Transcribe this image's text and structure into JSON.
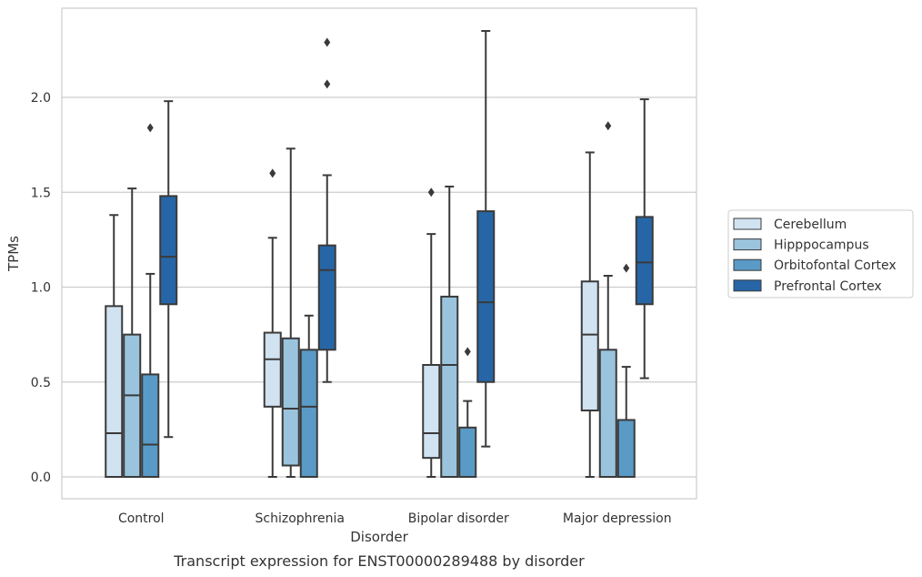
{
  "chart_data": {
    "type": "box",
    "title": "",
    "caption": "Transcript expression for ENST00000289488 by disorder",
    "xlabel": "Disorder",
    "ylabel": "TPMs",
    "ylim": [
      -0.11,
      2.47
    ],
    "yticks": [
      0.0,
      0.5,
      1.0,
      1.5,
      2.0
    ],
    "ytick_labels": [
      "0.0",
      "0.5",
      "1.0",
      "1.5",
      "2.0"
    ],
    "grid": "horizontal",
    "legend_position": "right",
    "categories": [
      "Control",
      "Schizophrenia",
      "Bipolar disorder",
      "Major depression"
    ],
    "series": [
      {
        "name": "Cerebellum",
        "color": "#d1e2f1",
        "boxes": [
          {
            "whislo": 0.0,
            "q1": 0.0,
            "med": 0.23,
            "q3": 0.9,
            "whishi": 1.38,
            "fliers": []
          },
          {
            "whislo": 0.0,
            "q1": 0.37,
            "med": 0.62,
            "q3": 0.76,
            "whishi": 1.26,
            "fliers": [
              1.6
            ]
          },
          {
            "whislo": 0.0,
            "q1": 0.1,
            "med": 0.23,
            "q3": 0.59,
            "whishi": 1.28,
            "fliers": [
              1.5
            ]
          },
          {
            "whislo": 0.0,
            "q1": 0.35,
            "med": 0.75,
            "q3": 1.03,
            "whishi": 1.71,
            "fliers": []
          }
        ]
      },
      {
        "name": "Hipppocampus",
        "color": "#9ac4de",
        "boxes": [
          {
            "whislo": 0.0,
            "q1": 0.0,
            "med": 0.43,
            "q3": 0.75,
            "whishi": 1.52,
            "fliers": []
          },
          {
            "whislo": 0.0,
            "q1": 0.06,
            "med": 0.36,
            "q3": 0.73,
            "whishi": 1.73,
            "fliers": []
          },
          {
            "whislo": 0.0,
            "q1": 0.0,
            "med": 0.59,
            "q3": 0.95,
            "whishi": 1.53,
            "fliers": []
          },
          {
            "whislo": 0.0,
            "q1": 0.0,
            "med": 0.0,
            "q3": 0.67,
            "whishi": 1.06,
            "fliers": [
              1.85
            ]
          }
        ]
      },
      {
        "name": "Orbitofontal Cortex",
        "color": "#5a9ac6",
        "boxes": [
          {
            "whislo": 0.0,
            "q1": 0.0,
            "med": 0.17,
            "q3": 0.54,
            "whishi": 1.07,
            "fliers": [
              1.84
            ]
          },
          {
            "whislo": 0.0,
            "q1": 0.0,
            "med": 0.37,
            "q3": 0.67,
            "whishi": 0.85,
            "fliers": []
          },
          {
            "whislo": 0.0,
            "q1": 0.0,
            "med": 0.0,
            "q3": 0.26,
            "whishi": 0.4,
            "fliers": [
              0.66
            ]
          },
          {
            "whislo": 0.0,
            "q1": 0.0,
            "med": 0.0,
            "q3": 0.3,
            "whishi": 0.58,
            "fliers": [
              1.1
            ]
          }
        ]
      },
      {
        "name": "Prefrontal Cortex",
        "color": "#2666a7",
        "boxes": [
          {
            "whislo": 0.21,
            "q1": 0.91,
            "med": 1.16,
            "q3": 1.48,
            "whishi": 1.98,
            "fliers": []
          },
          {
            "whislo": 0.5,
            "q1": 0.67,
            "med": 1.09,
            "q3": 1.22,
            "whishi": 1.59,
            "fliers": [
              2.07,
              2.29
            ]
          },
          {
            "whislo": 0.16,
            "q1": 0.5,
            "med": 0.92,
            "q3": 1.4,
            "whishi": 2.35,
            "fliers": []
          },
          {
            "whislo": 0.52,
            "q1": 0.91,
            "med": 1.13,
            "q3": 1.37,
            "whishi": 1.99,
            "fliers": []
          }
        ]
      }
    ]
  }
}
